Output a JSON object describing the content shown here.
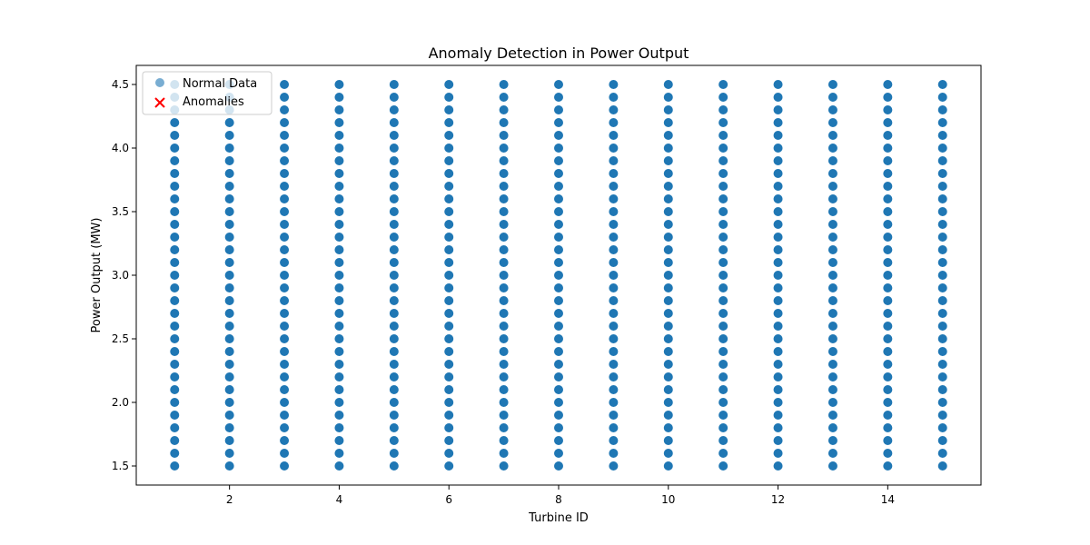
{
  "chart_data": {
    "type": "scatter",
    "title": "Anomaly Detection in Power Output",
    "xlabel": "Turbine ID",
    "ylabel": "Power Output (MW)",
    "xlim": [
      0.3,
      15.7
    ],
    "ylim": [
      1.35,
      4.65
    ],
    "xticks": [
      2,
      4,
      6,
      8,
      10,
      12,
      14
    ],
    "yticks": [
      1.5,
      2.0,
      2.5,
      3.0,
      3.5,
      4.0,
      4.5
    ],
    "grid": false,
    "legend": {
      "placement": "top-left"
    },
    "series": [
      {
        "name": "Normal Data",
        "marker": "circle",
        "color": "#1f77b4",
        "x_values": [
          1,
          2,
          3,
          4,
          5,
          6,
          7,
          8,
          9,
          10,
          11,
          12,
          13,
          14,
          15
        ],
        "y_range": [
          1.5,
          4.5
        ],
        "y_step": 0.1
      },
      {
        "name": "Anomalies",
        "marker": "x",
        "color": "#ff0000",
        "points": []
      }
    ]
  }
}
